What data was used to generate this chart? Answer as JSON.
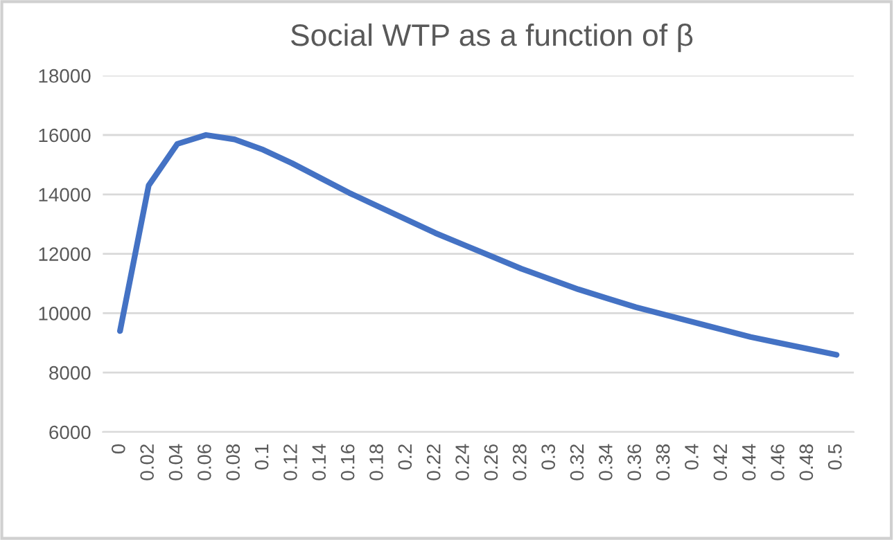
{
  "chart_data": {
    "type": "line",
    "title": "Social WTP as a function of β",
    "categories": [
      "0",
      "0.02",
      "0.04",
      "0.06",
      "0.08",
      "0.1",
      "0.12",
      "0.14",
      "0.16",
      "0.18",
      "0.2",
      "0.22",
      "0.24",
      "0.26",
      "0.28",
      "0.3",
      "0.32",
      "0.34",
      "0.36",
      "0.38",
      "0.4",
      "0.42",
      "0.44",
      "0.46",
      "0.48",
      "0.5"
    ],
    "series": [
      {
        "color": "#4472c4",
        "values": [
          9400,
          14300,
          15700,
          16000,
          15850,
          15500,
          15050,
          14550,
          14050,
          13600,
          13150,
          12700,
          12300,
          11900,
          11500,
          11150,
          10800,
          10500,
          10200,
          9950,
          9700,
          9450,
          9200,
          9000,
          8800,
          8600
        ]
      }
    ],
    "ylim": [
      6000,
      18000
    ],
    "yticks": [
      6000,
      8000,
      10000,
      12000,
      14000,
      16000,
      18000
    ],
    "grid": "y",
    "legend": false,
    "marker": "none",
    "line_style": "solid"
  }
}
